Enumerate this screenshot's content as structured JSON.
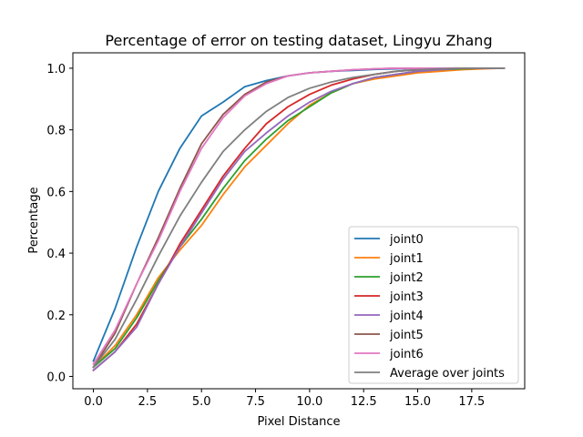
{
  "chart_data": {
    "type": "line",
    "title": "Percentage of error on testing dataset, Lingyu Zhang",
    "xlabel": "Pixel Distance",
    "ylabel": "Percentage",
    "xlim": [
      -0.95,
      19.95
    ],
    "ylim": [
      -0.04,
      1.05
    ],
    "xticks": [
      0,
      2.5,
      5,
      7.5,
      10,
      12.5,
      15,
      17.5
    ],
    "xtick_labels": [
      "0.0",
      "2.5",
      "5.0",
      "7.5",
      "10.0",
      "12.5",
      "15.0",
      "17.5"
    ],
    "yticks": [
      0,
      0.2,
      0.4,
      0.6,
      0.8,
      1.0
    ],
    "ytick_labels": [
      "0.0",
      "0.2",
      "0.4",
      "0.6",
      "0.8",
      "1.0"
    ],
    "grid": false,
    "legend_position": "lower-right",
    "x": [
      0,
      1,
      2,
      3,
      4,
      5,
      6,
      7,
      8,
      9,
      10,
      11,
      12,
      13,
      14,
      15,
      16,
      17,
      18,
      19
    ],
    "series": [
      {
        "name": "joint0",
        "color": "#1f77b4",
        "values": [
          0.05,
          0.22,
          0.42,
          0.6,
          0.74,
          0.845,
          0.89,
          0.94,
          0.96,
          0.975,
          0.985,
          0.99,
          0.993,
          0.996,
          0.998,
          0.999,
          1.0,
          1.0,
          1.0,
          1.0
        ]
      },
      {
        "name": "joint1",
        "color": "#ff7f0e",
        "values": [
          0.03,
          0.1,
          0.2,
          0.32,
          0.41,
          0.49,
          0.59,
          0.68,
          0.75,
          0.82,
          0.88,
          0.92,
          0.95,
          0.965,
          0.975,
          0.985,
          0.99,
          0.995,
          0.998,
          1.0
        ]
      },
      {
        "name": "joint2",
        "color": "#2ca02c",
        "values": [
          0.03,
          0.09,
          0.19,
          0.31,
          0.42,
          0.51,
          0.61,
          0.7,
          0.77,
          0.83,
          0.875,
          0.92,
          0.95,
          0.97,
          0.98,
          0.99,
          0.995,
          0.998,
          1.0,
          1.0
        ]
      },
      {
        "name": "joint3",
        "color": "#d62728",
        "values": [
          0.02,
          0.08,
          0.17,
          0.3,
          0.43,
          0.54,
          0.65,
          0.74,
          0.82,
          0.875,
          0.915,
          0.945,
          0.965,
          0.98,
          0.99,
          0.995,
          0.998,
          1.0,
          1.0,
          1.0
        ]
      },
      {
        "name": "joint4",
        "color": "#9467bd",
        "values": [
          0.02,
          0.08,
          0.16,
          0.3,
          0.42,
          0.53,
          0.64,
          0.73,
          0.79,
          0.845,
          0.89,
          0.925,
          0.95,
          0.97,
          0.98,
          0.99,
          0.995,
          1.0,
          1.0,
          1.0
        ]
      },
      {
        "name": "joint5",
        "color": "#8c564b",
        "values": [
          0.03,
          0.14,
          0.3,
          0.45,
          0.61,
          0.755,
          0.85,
          0.915,
          0.955,
          0.975,
          0.985,
          0.99,
          0.995,
          0.998,
          1.0,
          1.0,
          1.0,
          1.0,
          1.0,
          1.0
        ]
      },
      {
        "name": "joint6",
        "color": "#e377c2",
        "values": [
          0.04,
          0.15,
          0.3,
          0.44,
          0.6,
          0.74,
          0.84,
          0.91,
          0.95,
          0.975,
          0.985,
          0.99,
          0.995,
          0.998,
          1.0,
          1.0,
          1.0,
          1.0,
          1.0,
          1.0
        ]
      },
      {
        "name": "Average over joints",
        "color": "#7f7f7f",
        "values": [
          0.03,
          0.12,
          0.25,
          0.39,
          0.52,
          0.63,
          0.73,
          0.8,
          0.86,
          0.905,
          0.935,
          0.955,
          0.97,
          0.98,
          0.99,
          0.995,
          0.998,
          1.0,
          1.0,
          1.0
        ]
      }
    ]
  }
}
